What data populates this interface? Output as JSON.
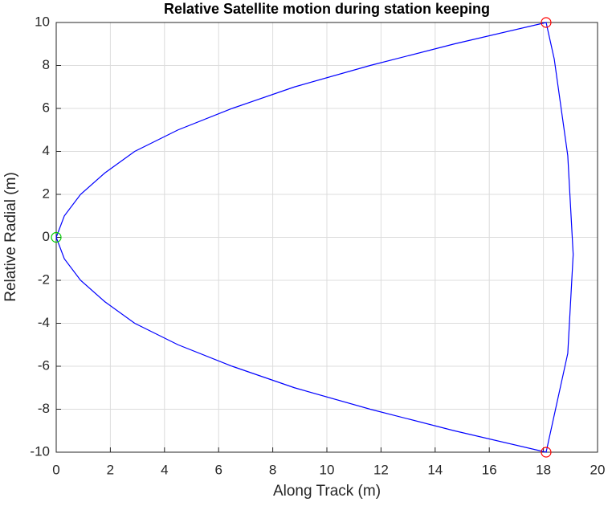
{
  "chart_data": {
    "type": "line",
    "title": "Relative Satellite motion during station keeping",
    "x_label": "Along Track (m)",
    "y_label": "Relative Radial (m)",
    "series": [
      {
        "color": "#0000ff",
        "x": [
          0,
          0.3,
          0.9,
          1.8,
          2.9,
          4.5,
          6.5,
          8.8,
          11.6,
          14.7,
          18.1,
          18.4,
          18.9,
          19.1,
          18.9,
          18.1,
          14.7,
          11.6,
          8.8,
          6.5,
          4.5,
          2.9,
          1.8,
          0.9,
          0.3,
          0
        ],
        "y": [
          0,
          1,
          2,
          3,
          4,
          5,
          6,
          7,
          8,
          9,
          10,
          8.3,
          3.8,
          -0.8,
          -5.4,
          -10,
          -9,
          -8,
          -7,
          -6,
          -5,
          -4,
          -3,
          -2,
          -1,
          0
        ]
      },
      {
        "color": "#ff0000",
        "marker": "circle",
        "x": [
          18.1,
          18.1
        ],
        "y": [
          10,
          -10
        ]
      },
      {
        "color": "#00cc00",
        "marker": "circle",
        "x": [
          0
        ],
        "y": [
          0
        ]
      }
    ],
    "xlim": [
      0,
      20
    ],
    "ylim": [
      -10,
      10
    ],
    "xticks": [
      0,
      2,
      4,
      6,
      8,
      10,
      12,
      14,
      16,
      18,
      20
    ],
    "yticks": [
      -10,
      -8,
      -6,
      -4,
      -2,
      0,
      2,
      4,
      6,
      8,
      10
    ],
    "grid": true
  }
}
